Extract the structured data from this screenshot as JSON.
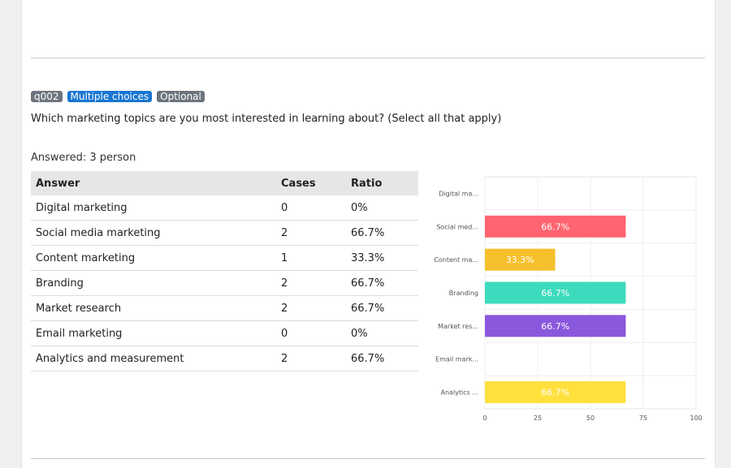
{
  "question": {
    "id": "q002",
    "type": "Multiple choices",
    "required": "Optional",
    "text": "Which marketing topics are you most interested in learning about? (Select all that apply)",
    "answered": "Answered: 3 person"
  },
  "table": {
    "headers": [
      "Answer",
      "Cases",
      "Ratio"
    ],
    "rows": [
      {
        "answer": "Digital marketing",
        "cases": "0",
        "ratio": "0%"
      },
      {
        "answer": "Social media marketing",
        "cases": "2",
        "ratio": "66.7%"
      },
      {
        "answer": "Content marketing",
        "cases": "1",
        "ratio": "33.3%"
      },
      {
        "answer": "Branding",
        "cases": "2",
        "ratio": "66.7%"
      },
      {
        "answer": "Market research",
        "cases": "2",
        "ratio": "66.7%"
      },
      {
        "answer": "Email marketing",
        "cases": "0",
        "ratio": "0%"
      },
      {
        "answer": "Analytics and measurement",
        "cases": "2",
        "ratio": "66.7%"
      }
    ]
  },
  "chart_data": {
    "type": "bar",
    "orientation": "horizontal",
    "categories": [
      "Digital ma...",
      "Social med...",
      "Content ma...",
      "Branding",
      "Market res...",
      "Email mark...",
      "Analytics ..."
    ],
    "values": [
      0,
      66.7,
      33.3,
      66.7,
      66.7,
      0,
      66.7
    ],
    "data_labels": [
      "",
      "66.7%",
      "33.3%",
      "66.7%",
      "66.7%",
      "",
      "66.7%"
    ],
    "colors": [
      "#4fa3e0",
      "#ff6470",
      "#f5c02c",
      "#3ddbbd",
      "#8a58dd",
      "#4fa3e0",
      "#ffe03c"
    ],
    "xlim": [
      0,
      100
    ],
    "xticks": [
      0,
      25,
      50,
      75,
      100
    ],
    "grid": true,
    "title": "",
    "xlabel": "",
    "ylabel": ""
  }
}
